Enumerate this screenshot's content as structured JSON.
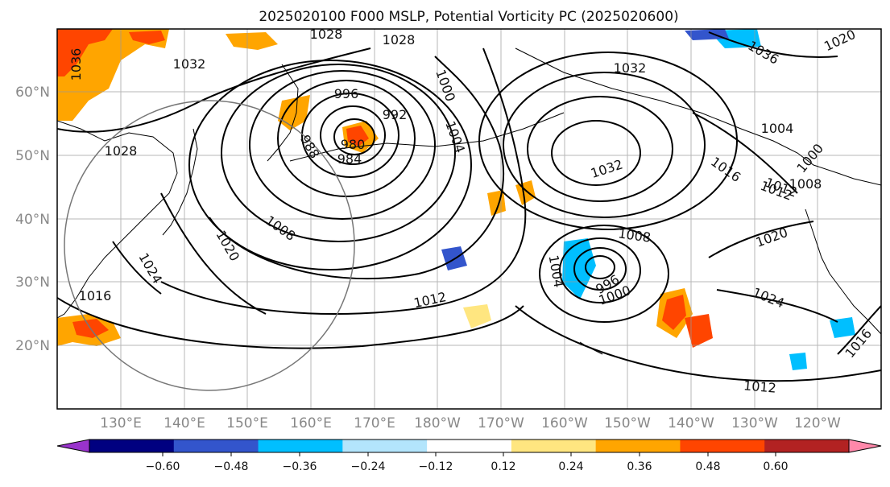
{
  "title": "2025020100 F000 MSLP, Potential Vorticity PC (2025020600)",
  "map": {
    "lat_labels": [
      "60°N",
      "50°N",
      "40°N",
      "30°N",
      "20°N"
    ],
    "lon_labels": [
      "130°E",
      "140°E",
      "150°E",
      "160°E",
      "170°E",
      "180°W",
      "170°W",
      "160°W",
      "150°W",
      "140°W",
      "130°W",
      "120°W"
    ],
    "isobar_labels": [
      "1036",
      "1032",
      "1028",
      "1028",
      "1028",
      "996",
      "992",
      "988",
      "984",
      "980",
      "1000",
      "1004",
      "1032",
      "1032",
      "1036",
      "1020",
      "1004",
      "1000",
      "1016",
      "1012",
      "1008",
      "1008",
      "1020",
      "1024",
      "1012",
      "1008",
      "1016",
      "1004",
      "996",
      "1000",
      "1020",
      "1024",
      "1016",
      "1012",
      "1012"
    ],
    "pressure_systems": [
      {
        "kind": "low",
        "center_lat": 53,
        "center_lon": 167,
        "min_label": "980"
      },
      {
        "kind": "high",
        "center_lat": 50,
        "center_lon": 203,
        "max_label": "1032"
      },
      {
        "kind": "low",
        "center_lat": 32,
        "center_lon": 205,
        "min_label": "996"
      }
    ]
  },
  "colorbar": {
    "colors": [
      "#9933cc",
      "#000080",
      "#3355cc",
      "#00bfff",
      "#b3e5fc",
      "#ffffff",
      "#ffe680",
      "#ffa500",
      "#ff4500",
      "#b22222",
      "#ff88aa"
    ],
    "tick_labels": [
      "−0.60",
      "−0.48",
      "−0.36",
      "−0.24",
      "−0.12",
      "0.12",
      "0.24",
      "0.36",
      "0.48",
      "0.60"
    ],
    "ticks": [
      -0.6,
      -0.48,
      -0.36,
      -0.24,
      -0.12,
      0.12,
      0.24,
      0.36,
      0.48,
      0.6
    ]
  }
}
